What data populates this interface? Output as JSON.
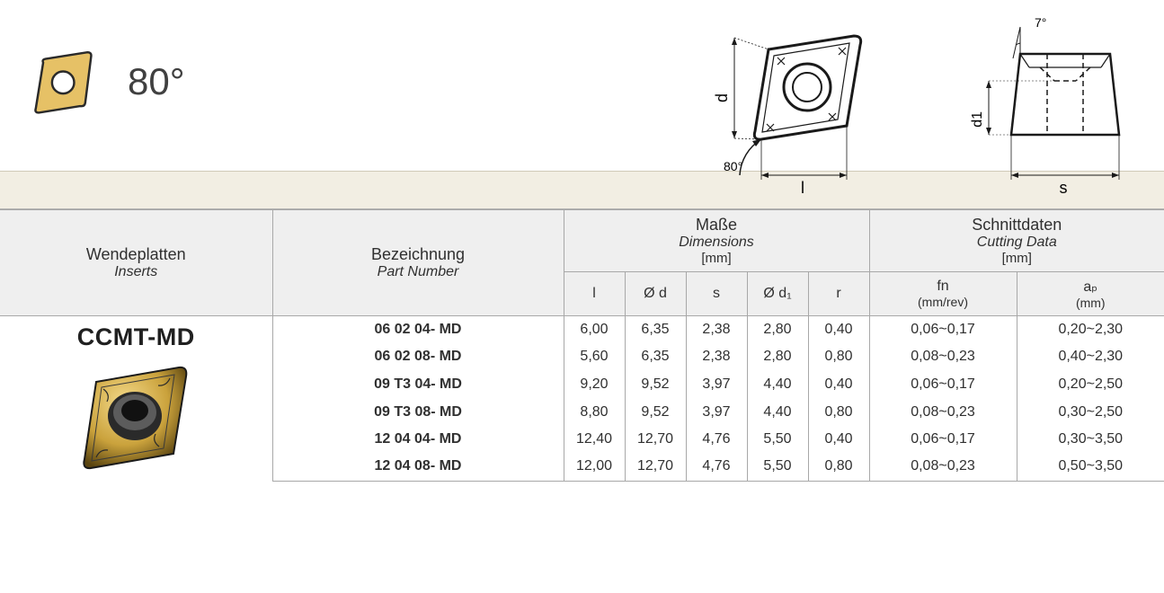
{
  "header": {
    "angle_label": "80°",
    "insert_icon": {
      "fill": "#e6c166",
      "stroke": "#2a2a2a",
      "rhombus_angle_deg": 80
    },
    "drawing_top": {
      "label_d": "d",
      "label_l": "l",
      "label_angle": "80°",
      "stroke": "#1a1a1a"
    },
    "drawing_side": {
      "label_clearance": "7°",
      "label_d1": "d1",
      "label_s": "s",
      "stroke": "#1a1a1a"
    }
  },
  "table": {
    "colors": {
      "header_bg": "#efefef",
      "border": "#a8a8a8",
      "body_bg": "#ffffff",
      "text": "#303030"
    },
    "headers": {
      "inserts_de": "Wendeplatten",
      "inserts_en": "Inserts",
      "partnum_de": "Bezeichnung",
      "partnum_en": "Part Number",
      "dims_de": "Maße",
      "dims_en": "Dimensions",
      "dims_unit": "[mm]",
      "cut_de": "Schnittdaten",
      "cut_en": "Cutting Data",
      "cut_unit": "[mm]",
      "dim_cols": [
        "l",
        "Ø d",
        "s",
        "Ø d₁",
        "r"
      ],
      "cut_cols": [
        {
          "label": "fn",
          "unit": "(mm/rev)"
        },
        {
          "label": "aₚ",
          "unit": "(mm)"
        }
      ]
    },
    "insert_name": "CCMT-MD",
    "rows": [
      {
        "part": "06 02 04- MD",
        "l": "6,00",
        "d": "6,35",
        "s": "2,38",
        "d1": "2,80",
        "r": "0,40",
        "fn": "0,06~0,17",
        "ap": "0,20~2,30"
      },
      {
        "part": "06 02 08- MD",
        "l": "5,60",
        "d": "6,35",
        "s": "2,38",
        "d1": "2,80",
        "r": "0,80",
        "fn": "0,08~0,23",
        "ap": "0,40~2,30"
      },
      {
        "part": "09 T3 04- MD",
        "l": "9,20",
        "d": "9,52",
        "s": "3,97",
        "d1": "4,40",
        "r": "0,40",
        "fn": "0,06~0,17",
        "ap": "0,20~2,50"
      },
      {
        "part": "09 T3 08- MD",
        "l": "8,80",
        "d": "9,52",
        "s": "3,97",
        "d1": "4,40",
        "r": "0,80",
        "fn": "0,08~0,23",
        "ap": "0,30~2,50"
      },
      {
        "part": "12 04 04- MD",
        "l": "12,40",
        "d": "12,70",
        "s": "4,76",
        "d1": "5,50",
        "r": "0,40",
        "fn": "0,06~0,17",
        "ap": "0,30~3,50"
      },
      {
        "part": "12 04 08- MD",
        "l": "12,00",
        "d": "12,70",
        "s": "4,76",
        "d1": "5,50",
        "r": "0,80",
        "fn": "0,08~0,23",
        "ap": "0,50~3,50"
      }
    ]
  }
}
